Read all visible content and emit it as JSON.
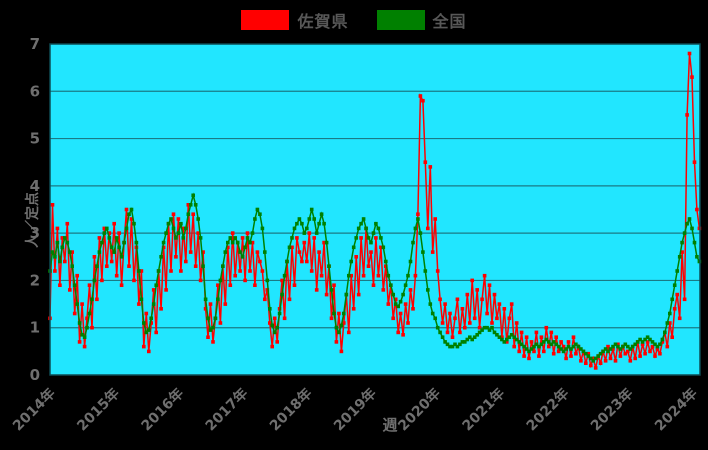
{
  "legend": {
    "items": [
      {
        "label": "佐賀県",
        "color": "#ff0000"
      },
      {
        "label": "全国",
        "color": "#008000"
      }
    ]
  },
  "chart_data": {
    "type": "line",
    "title": "",
    "xlabel": "週",
    "ylabel": "人／定点",
    "ylim": [
      0,
      7
    ],
    "y_ticks": [
      0,
      1,
      2,
      3,
      4,
      5,
      6,
      7
    ],
    "x_tick_values": [
      2014,
      2015,
      2016,
      2017,
      2018,
      2019,
      2020,
      2021,
      2022,
      2023,
      2024
    ],
    "x_tick_labels": [
      "2014年",
      "2015年",
      "2016年",
      "2017年",
      "2018年",
      "2019年",
      "2020年",
      "2021年",
      "2022年",
      "2023年",
      "2024年"
    ],
    "x_start": 2014.0,
    "x_step_years": 0.0384615,
    "grid": true,
    "legend_position": "top-center",
    "colors": {
      "plot_bg": "#21e6ff",
      "page_bg": "#000000",
      "grid_color": "#1a7a86",
      "frame_color": "#0e4a52",
      "tick_label_color": "#6f6f6f"
    },
    "series": [
      {
        "name": "佐賀県",
        "color": "#ff0000",
        "values": [
          1.2,
          3.6,
          2.2,
          3.1,
          1.9,
          2.9,
          2.4,
          3.2,
          1.8,
          2.6,
          1.3,
          2.1,
          0.7,
          1.5,
          0.6,
          1.2,
          1.9,
          1.0,
          2.5,
          1.6,
          2.9,
          2.0,
          3.1,
          2.3,
          3.0,
          2.4,
          3.2,
          2.1,
          3.0,
          1.9,
          2.8,
          3.5,
          2.3,
          3.3,
          2.0,
          2.7,
          1.5,
          2.2,
          0.6,
          1.3,
          0.5,
          1.1,
          1.8,
          0.9,
          2.2,
          1.4,
          2.7,
          1.8,
          3.2,
          2.2,
          3.4,
          2.5,
          3.3,
          2.2,
          3.1,
          2.4,
          3.6,
          2.6,
          3.4,
          2.3,
          3.0,
          2.0,
          2.6,
          1.4,
          0.8,
          1.5,
          0.7,
          1.2,
          1.9,
          1.1,
          2.3,
          1.5,
          2.7,
          1.9,
          3.0,
          2.1,
          2.8,
          2.2,
          2.9,
          2.0,
          3.0,
          2.2,
          2.8,
          1.9,
          2.6,
          2.4,
          2.2,
          1.6,
          1.8,
          1.1,
          0.6,
          1.2,
          0.7,
          1.4,
          2.0,
          1.2,
          2.4,
          1.6,
          2.7,
          1.9,
          2.9,
          2.6,
          2.4,
          2.8,
          2.4,
          3.0,
          2.2,
          2.9,
          1.8,
          2.6,
          2.1,
          2.8,
          1.7,
          2.3,
          1.2,
          1.9,
          0.7,
          1.3,
          0.5,
          1.1,
          1.7,
          0.9,
          2.1,
          1.4,
          2.5,
          1.7,
          2.9,
          2.1,
          3.1,
          2.3,
          2.6,
          1.9,
          2.9,
          2.1,
          2.7,
          1.8,
          2.3,
          1.5,
          1.9,
          1.2,
          1.6,
          0.9,
          1.3,
          0.85,
          1.5,
          1.1,
          1.8,
          1.4,
          2.1,
          3.4,
          5.9,
          5.8,
          4.5,
          3.1,
          4.4,
          2.6,
          3.3,
          2.2,
          1.6,
          1.1,
          1.5,
          0.9,
          1.3,
          0.8,
          1.2,
          1.6,
          0.9,
          1.4,
          1.0,
          1.7,
          1.1,
          2.0,
          1.2,
          1.8,
          1.0,
          1.6,
          2.1,
          1.3,
          1.9,
          1.1,
          1.7,
          1.2,
          1.5,
          0.8,
          1.4,
          0.7,
          1.2,
          1.5,
          0.6,
          1.1,
          0.5,
          0.9,
          0.4,
          0.8,
          0.35,
          0.7,
          0.5,
          0.9,
          0.4,
          0.8,
          0.5,
          1.0,
          0.6,
          0.9,
          0.45,
          0.8,
          0.5,
          0.7,
          0.6,
          0.35,
          0.7,
          0.4,
          0.8,
          0.45,
          0.6,
          0.3,
          0.5,
          0.25,
          0.45,
          0.2,
          0.35,
          0.15,
          0.4,
          0.25,
          0.5,
          0.3,
          0.6,
          0.35,
          0.55,
          0.3,
          0.65,
          0.4,
          0.6,
          0.45,
          0.5,
          0.3,
          0.6,
          0.35,
          0.7,
          0.4,
          0.65,
          0.45,
          0.7,
          0.5,
          0.6,
          0.4,
          0.55,
          0.45,
          0.7,
          0.9,
          0.6,
          1.1,
          0.8,
          1.4,
          1.7,
          1.2,
          2.6,
          1.6,
          5.5,
          6.8,
          6.3,
          4.5,
          3.5,
          3.1
        ]
      },
      {
        "name": "全国",
        "color": "#008000",
        "values": [
          2.2,
          2.6,
          2.5,
          2.8,
          2.4,
          2.7,
          2.9,
          2.8,
          2.6,
          2.3,
          1.9,
          1.5,
          1.1,
          0.85,
          0.8,
          1.0,
          1.3,
          1.6,
          2.0,
          2.3,
          2.6,
          2.8,
          3.0,
          3.1,
          2.9,
          2.7,
          2.6,
          2.9,
          2.7,
          2.5,
          2.8,
          3.1,
          3.4,
          3.5,
          3.2,
          2.8,
          2.2,
          1.6,
          1.1,
          0.9,
          0.95,
          1.2,
          1.5,
          1.9,
          2.2,
          2.5,
          2.8,
          3.0,
          3.2,
          3.3,
          3.1,
          2.9,
          3.0,
          3.2,
          2.9,
          3.1,
          3.4,
          3.6,
          3.8,
          3.6,
          3.3,
          2.9,
          2.3,
          1.6,
          1.2,
          0.95,
          1.0,
          1.2,
          1.6,
          2.0,
          2.3,
          2.6,
          2.8,
          2.9,
          2.8,
          2.9,
          2.8,
          2.6,
          2.5,
          2.7,
          2.9,
          2.8,
          3.0,
          3.3,
          3.5,
          3.4,
          3.1,
          2.6,
          2.0,
          1.4,
          1.05,
          0.9,
          1.0,
          1.3,
          1.7,
          2.1,
          2.4,
          2.7,
          2.9,
          3.1,
          3.2,
          3.3,
          3.2,
          3.0,
          3.1,
          3.3,
          3.5,
          3.3,
          3.0,
          3.2,
          3.4,
          3.2,
          2.8,
          2.3,
          1.8,
          1.3,
          1.0,
          0.9,
          1.05,
          1.3,
          1.7,
          2.1,
          2.4,
          2.7,
          2.9,
          3.1,
          3.2,
          3.3,
          3.1,
          2.9,
          2.8,
          3.0,
          3.2,
          3.1,
          2.9,
          2.7,
          2.4,
          2.1,
          1.9,
          1.7,
          1.5,
          1.45,
          1.55,
          1.7,
          1.9,
          2.1,
          2.4,
          2.8,
          3.1,
          3.3,
          3.0,
          2.6,
          2.2,
          1.8,
          1.5,
          1.3,
          1.2,
          1.0,
          0.9,
          0.8,
          0.7,
          0.65,
          0.6,
          0.6,
          0.65,
          0.6,
          0.65,
          0.7,
          0.7,
          0.75,
          0.8,
          0.75,
          0.8,
          0.85,
          0.9,
          0.95,
          1.0,
          1.0,
          0.95,
          1.0,
          0.9,
          0.85,
          0.8,
          0.75,
          0.7,
          0.75,
          0.8,
          0.85,
          0.8,
          0.75,
          0.7,
          0.65,
          0.6,
          0.55,
          0.5,
          0.55,
          0.6,
          0.65,
          0.6,
          0.65,
          0.7,
          0.75,
          0.7,
          0.65,
          0.7,
          0.65,
          0.6,
          0.55,
          0.5,
          0.55,
          0.6,
          0.55,
          0.6,
          0.65,
          0.6,
          0.55,
          0.5,
          0.45,
          0.4,
          0.35,
          0.3,
          0.35,
          0.4,
          0.45,
          0.5,
          0.55,
          0.5,
          0.55,
          0.6,
          0.65,
          0.6,
          0.55,
          0.6,
          0.65,
          0.6,
          0.55,
          0.6,
          0.65,
          0.7,
          0.75,
          0.7,
          0.75,
          0.8,
          0.75,
          0.7,
          0.65,
          0.6,
          0.65,
          0.75,
          0.9,
          1.1,
          1.3,
          1.6,
          1.9,
          2.2,
          2.5,
          2.8,
          3.0,
          3.2,
          3.3,
          3.1,
          2.8,
          2.5,
          2.4
        ]
      }
    ]
  }
}
